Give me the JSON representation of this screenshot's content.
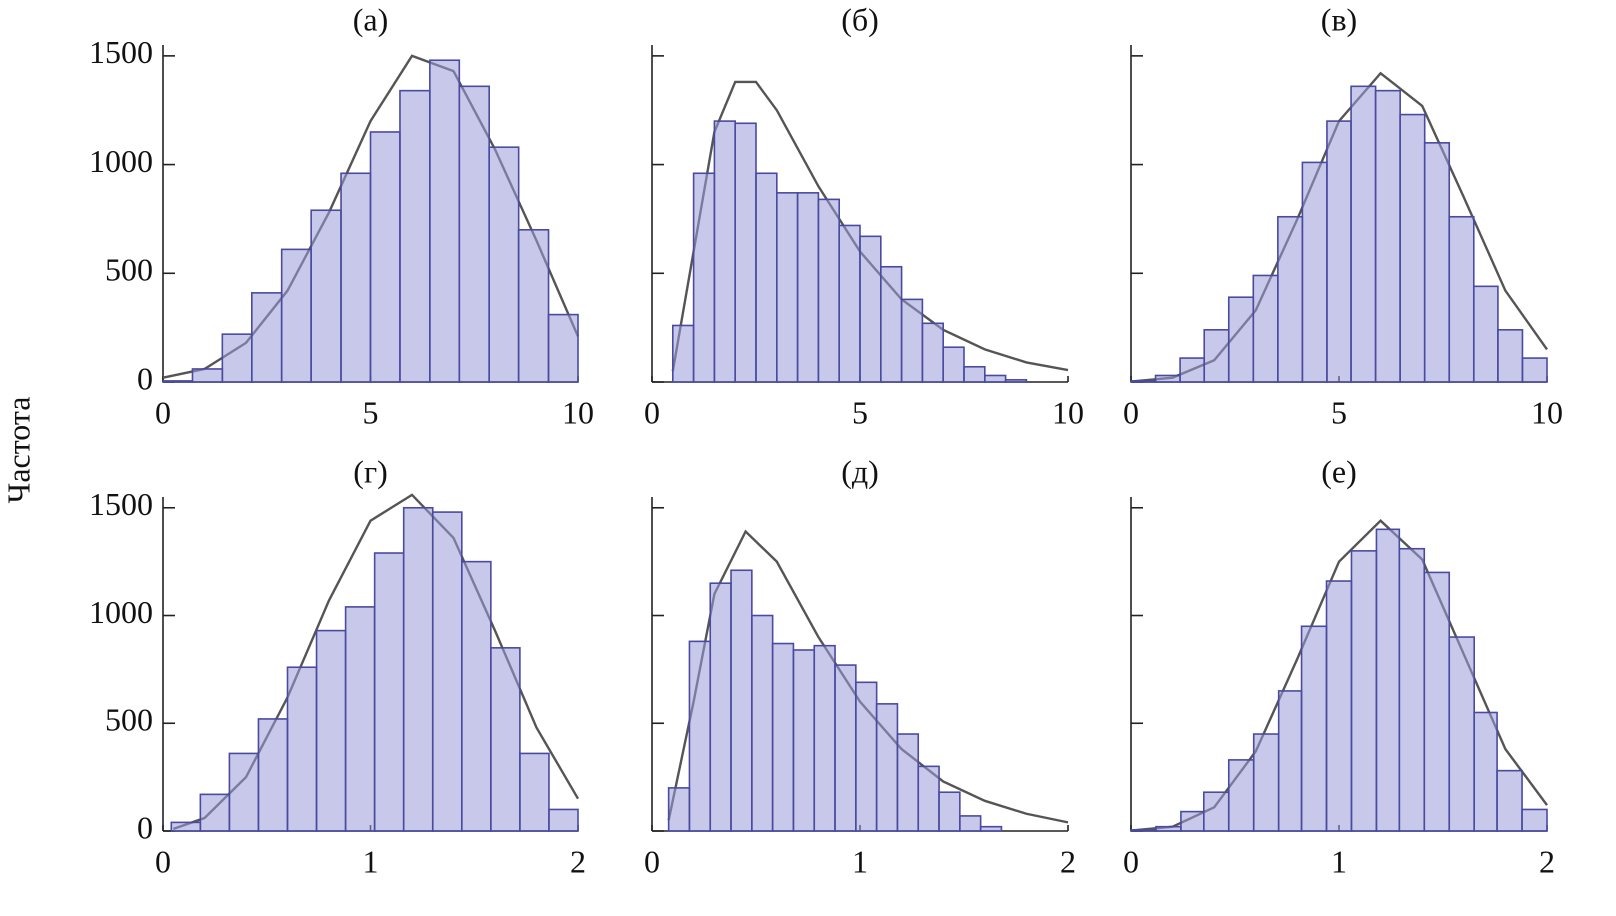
{
  "ylabel": "Частота",
  "chart_data": [
    {
      "type": "histogram",
      "title": "(а)",
      "color": "#9a9ad8",
      "edge_color": "#4a4aa0",
      "bins": [
        0,
        0.71,
        1.43,
        2.14,
        2.86,
        3.57,
        4.29,
        5,
        5.71,
        6.43,
        7.14,
        7.86,
        8.57,
        9.29,
        10
      ],
      "counts": [
        5,
        60,
        220,
        410,
        610,
        790,
        960,
        1150,
        1340,
        1480,
        1360,
        1080,
        700,
        310
      ],
      "curve": {
        "color": "#555555",
        "x": [
          0,
          1,
          2,
          3,
          4,
          5,
          6,
          7,
          8,
          9,
          10
        ],
        "y": [
          20,
          60,
          180,
          420,
          780,
          1200,
          1500,
          1430,
          1070,
          650,
          210
        ]
      },
      "xlim": [
        0,
        10
      ],
      "ylim": [
        0,
        1550
      ],
      "xticks": [
        0,
        5,
        10
      ],
      "yticks": [
        0,
        500,
        1000,
        1500
      ],
      "ytick_labels": true
    },
    {
      "type": "histogram",
      "title": "(б)",
      "color": "#9a9ad8",
      "edge_color": "#4a4aa0",
      "bins": [
        0.5,
        1,
        1.5,
        2,
        2.5,
        3,
        3.5,
        4,
        4.5,
        5,
        5.5,
        6,
        6.5,
        7,
        7.5,
        8,
        8.5,
        9
      ],
      "counts": [
        260,
        960,
        1200,
        1190,
        960,
        870,
        870,
        840,
        720,
        670,
        530,
        380,
        270,
        160,
        70,
        30,
        10
      ],
      "curve": {
        "color": "#555555",
        "x": [
          0.5,
          1,
          1.5,
          2,
          2.5,
          3,
          4,
          5,
          6,
          7,
          8,
          9,
          10
        ],
        "y": [
          50,
          600,
          1150,
          1380,
          1380,
          1250,
          900,
          600,
          380,
          240,
          150,
          90,
          55
        ]
      },
      "xlim": [
        0,
        10
      ],
      "ylim": [
        0,
        1550
      ],
      "xticks": [
        0,
        5,
        10
      ],
      "yticks": [
        0,
        500,
        1000,
        1500
      ],
      "ytick_labels": false
    },
    {
      "type": "histogram",
      "title": "(в)",
      "color": "#9a9ad8",
      "edge_color": "#4a4aa0",
      "bins": [
        0,
        0.59,
        1.18,
        1.76,
        2.35,
        2.94,
        3.53,
        4.12,
        4.71,
        5.29,
        5.88,
        6.47,
        7.06,
        7.65,
        8.24,
        8.82,
        9.41,
        10
      ],
      "counts": [
        5,
        30,
        110,
        240,
        390,
        490,
        760,
        1010,
        1200,
        1360,
        1340,
        1230,
        1100,
        760,
        440,
        240,
        110
      ],
      "curve": {
        "color": "#555555",
        "x": [
          0,
          1,
          2,
          3,
          4,
          5,
          6,
          7,
          8,
          9,
          10
        ],
        "y": [
          2,
          20,
          100,
          330,
          750,
          1200,
          1420,
          1270,
          850,
          420,
          150
        ]
      },
      "xlim": [
        0,
        10
      ],
      "ylim": [
        0,
        1550
      ],
      "xticks": [
        0,
        5,
        10
      ],
      "yticks": [
        0,
        500,
        1000,
        1500
      ],
      "ytick_labels": false
    },
    {
      "type": "histogram",
      "title": "(г)",
      "color": "#9a9ad8",
      "edge_color": "#4a4aa0",
      "bins": [
        0.04,
        0.18,
        0.32,
        0.46,
        0.6,
        0.74,
        0.88,
        1.02,
        1.16,
        1.3,
        1.44,
        1.58,
        1.72,
        1.86,
        2
      ],
      "counts": [
        40,
        170,
        360,
        520,
        760,
        930,
        1040,
        1290,
        1500,
        1480,
        1250,
        850,
        360,
        100
      ],
      "curve": {
        "color": "#555555",
        "x": [
          0.05,
          0.2,
          0.4,
          0.6,
          0.8,
          1,
          1.2,
          1.4,
          1.6,
          1.8,
          2
        ],
        "y": [
          10,
          60,
          250,
          620,
          1070,
          1440,
          1560,
          1360,
          930,
          480,
          150
        ]
      },
      "xlim": [
        0,
        2
      ],
      "ylim": [
        0,
        1550
      ],
      "xticks": [
        0,
        1,
        2
      ],
      "yticks": [
        0,
        500,
        1000,
        1500
      ],
      "ytick_labels": true
    },
    {
      "type": "histogram",
      "title": "(д)",
      "color": "#9a9ad8",
      "edge_color": "#4a4aa0",
      "bins": [
        0.08,
        0.18,
        0.28,
        0.38,
        0.48,
        0.58,
        0.68,
        0.78,
        0.88,
        0.98,
        1.08,
        1.18,
        1.28,
        1.38,
        1.48,
        1.58,
        1.68
      ],
      "counts": [
        200,
        880,
        1150,
        1210,
        1000,
        870,
        840,
        860,
        770,
        690,
        590,
        450,
        300,
        180,
        70,
        20
      ],
      "curve": {
        "color": "#555555",
        "x": [
          0.08,
          0.2,
          0.3,
          0.45,
          0.6,
          0.8,
          1,
          1.2,
          1.4,
          1.6,
          1.8,
          2
        ],
        "y": [
          50,
          600,
          1100,
          1390,
          1250,
          900,
          600,
          380,
          230,
          140,
          80,
          40
        ]
      },
      "xlim": [
        0,
        2
      ],
      "ylim": [
        0,
        1550
      ],
      "xticks": [
        0,
        1,
        2
      ],
      "yticks": [
        0,
        500,
        1000,
        1500
      ],
      "ytick_labels": false
    },
    {
      "type": "histogram",
      "title": "(е)",
      "color": "#9a9ad8",
      "edge_color": "#4a4aa0",
      "bins": [
        0,
        0.12,
        0.24,
        0.35,
        0.47,
        0.59,
        0.71,
        0.82,
        0.94,
        1.06,
        1.18,
        1.29,
        1.41,
        1.53,
        1.65,
        1.76,
        1.88,
        2
      ],
      "counts": [
        5,
        20,
        90,
        180,
        330,
        450,
        650,
        950,
        1160,
        1300,
        1400,
        1310,
        1200,
        900,
        550,
        280,
        100
      ],
      "curve": {
        "color": "#555555",
        "x": [
          0,
          0.2,
          0.4,
          0.6,
          0.8,
          1,
          1.2,
          1.4,
          1.6,
          1.8,
          2
        ],
        "y": [
          2,
          20,
          110,
          370,
          800,
          1250,
          1440,
          1260,
          820,
          380,
          120
        ]
      },
      "xlim": [
        0,
        2
      ],
      "ylim": [
        0,
        1550
      ],
      "xticks": [
        0,
        1,
        2
      ],
      "yticks": [
        0,
        500,
        1000,
        1500
      ],
      "ytick_labels": false
    }
  ]
}
